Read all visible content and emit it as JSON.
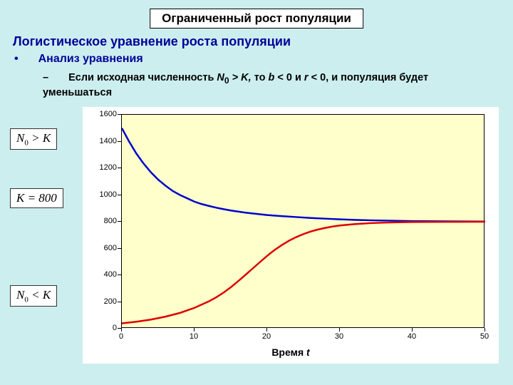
{
  "slide": {
    "background_color": "#cceeee",
    "title": "Ограниченный рост популяции",
    "subtitle": "Логистическое уравнение роста популяции",
    "bullet1": "Анализ уравнения",
    "bullet2_prefix": "Если исходная численность ",
    "bullet2_var1": "N",
    "bullet2_sub1": "0",
    "bullet2_mid1": " > K, ",
    "bullet2_plain1": "то ",
    "bullet2_var2": "b",
    "bullet2_mid2": " < 0 ",
    "bullet2_plain2": "и ",
    "bullet2_var3": "r",
    "bullet2_mid3": " < 0, ",
    "bullet2_suffix": "и популяция будет уменьшаться"
  },
  "equations": {
    "eq1_lhs": "N",
    "eq1_sub": "0",
    "eq1_rhs": " > K",
    "eq2": "K = 800",
    "eq3_lhs": "N",
    "eq3_sub": "0",
    "eq3_rhs": " < K"
  },
  "chart": {
    "type": "line",
    "plot_bg": "#ffffcc",
    "xlim": [
      0,
      50
    ],
    "ylim": [
      0,
      1600
    ],
    "xticks": [
      0,
      10,
      20,
      30,
      40,
      50
    ],
    "yticks": [
      0,
      200,
      400,
      600,
      800,
      1000,
      1200,
      1400,
      1600
    ],
    "xlabel_prefix": "Время ",
    "xlabel_var": "t",
    "tick_fontsize": 11,
    "label_fontsize": 14,
    "series": [
      {
        "name": "above-K",
        "color": "#0000cc",
        "width": 2.5,
        "data": [
          [
            0,
            1500
          ],
          [
            1,
            1400
          ],
          [
            2,
            1310
          ],
          [
            3,
            1235
          ],
          [
            4,
            1170
          ],
          [
            5,
            1115
          ],
          [
            6,
            1070
          ],
          [
            7,
            1030
          ],
          [
            8,
            1000
          ],
          [
            9,
            975
          ],
          [
            10,
            950
          ],
          [
            11,
            932
          ],
          [
            12,
            918
          ],
          [
            13,
            905
          ],
          [
            14,
            894
          ],
          [
            15,
            884
          ],
          [
            16,
            876
          ],
          [
            17,
            868
          ],
          [
            18,
            862
          ],
          [
            19,
            856
          ],
          [
            20,
            850
          ],
          [
            22,
            842
          ],
          [
            24,
            835
          ],
          [
            26,
            828
          ],
          [
            28,
            823
          ],
          [
            30,
            818
          ],
          [
            32,
            814
          ],
          [
            34,
            811
          ],
          [
            36,
            809
          ],
          [
            38,
            807
          ],
          [
            40,
            805
          ],
          [
            45,
            803
          ],
          [
            50,
            801
          ]
        ]
      },
      {
        "name": "below-K",
        "color": "#dd0000",
        "width": 2.5,
        "data": [
          [
            0,
            40
          ],
          [
            2,
            52
          ],
          [
            4,
            68
          ],
          [
            6,
            90
          ],
          [
            8,
            118
          ],
          [
            10,
            156
          ],
          [
            12,
            205
          ],
          [
            13,
            235
          ],
          [
            14,
            270
          ],
          [
            15,
            310
          ],
          [
            16,
            355
          ],
          [
            17,
            402
          ],
          [
            18,
            450
          ],
          [
            19,
            498
          ],
          [
            20,
            545
          ],
          [
            21,
            588
          ],
          [
            22,
            625
          ],
          [
            23,
            658
          ],
          [
            24,
            685
          ],
          [
            25,
            708
          ],
          [
            26,
            727
          ],
          [
            27,
            742
          ],
          [
            28,
            754
          ],
          [
            29,
            764
          ],
          [
            30,
            772
          ],
          [
            32,
            782
          ],
          [
            34,
            789
          ],
          [
            36,
            793
          ],
          [
            38,
            796
          ],
          [
            40,
            798
          ],
          [
            45,
            799
          ],
          [
            50,
            800
          ]
        ]
      }
    ]
  }
}
